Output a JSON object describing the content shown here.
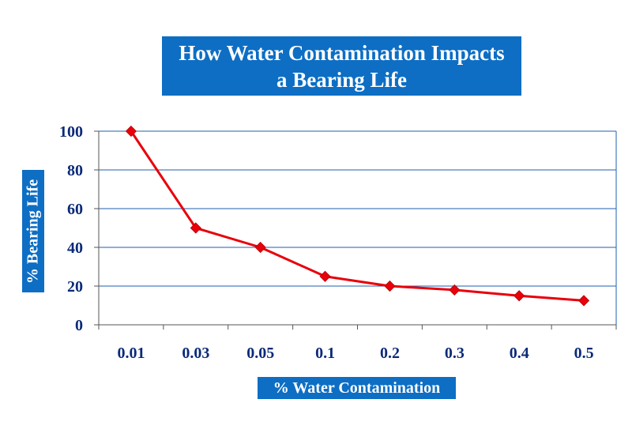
{
  "chart_data": {
    "type": "line",
    "title": [
      "How Water Contamination Impacts",
      "a Bearing Life"
    ],
    "xlabel": "% Water Contamination",
    "ylabel": "% Bearing Life",
    "categories": [
      "0.01",
      "0.03",
      "0.05",
      "0.1",
      "0.2",
      "0.3",
      "0.4",
      "0.5"
    ],
    "series": [
      {
        "values": [
          100,
          50,
          40,
          25,
          20,
          18,
          15,
          12.5
        ]
      }
    ],
    "ylim": [
      0,
      100
    ],
    "yticks": [
      0,
      20,
      40,
      60,
      80,
      100
    ],
    "grid": "horizontal",
    "colors": {
      "series": "#e8000b",
      "marker": "#e8000b",
      "grid": "#1f5fb0",
      "box": "#0d6ec4",
      "tick_text": "#0b2a78"
    }
  }
}
